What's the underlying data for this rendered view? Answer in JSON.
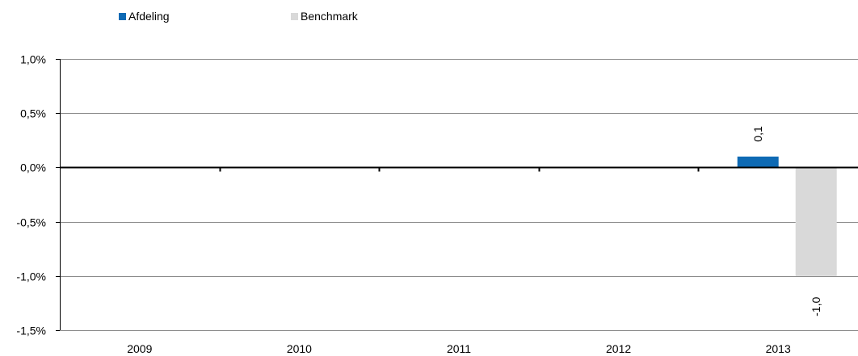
{
  "chart_data": {
    "type": "bar",
    "categories": [
      "2009",
      "2010",
      "2011",
      "2012",
      "2013"
    ],
    "series": [
      {
        "name": "Afdeling",
        "color": "#0e6ab4",
        "values": [
          null,
          null,
          null,
          null,
          0.1
        ]
      },
      {
        "name": "Benchmark",
        "color": "#d9d9d9",
        "values": [
          null,
          null,
          null,
          null,
          -1.0
        ]
      }
    ],
    "ylim": [
      -1.5,
      1.0
    ],
    "yticks": [
      1.0,
      0.5,
      0.0,
      -0.5,
      -1.0,
      -1.5
    ],
    "ytick_labels": [
      "1,0%",
      "0,5%",
      "0,0%",
      "-0,5%",
      "-1,0%",
      "-1,5%"
    ],
    "data_labels": [
      "0,1",
      "-1,0"
    ],
    "grid": true,
    "legend_position": "top-left",
    "title": "",
    "xlabel": "",
    "ylabel": ""
  }
}
